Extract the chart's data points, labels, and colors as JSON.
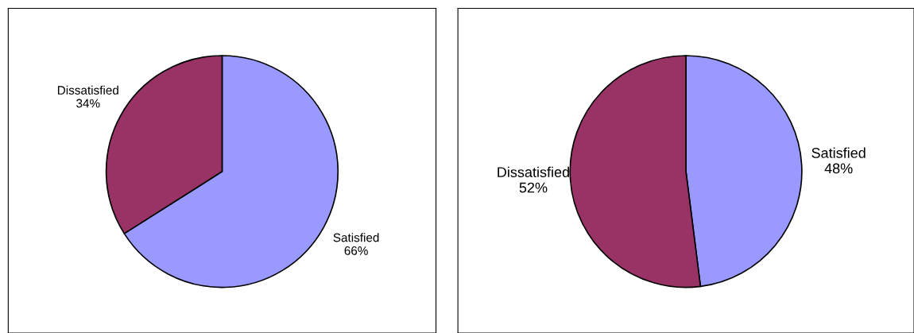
{
  "chart_data": [
    {
      "type": "pie",
      "categories": [
        "Satisfied",
        "Dissatisfied"
      ],
      "values": [
        66,
        34
      ],
      "colors": [
        "#9999ff",
        "#993366"
      ],
      "value_labels": [
        "66%",
        "34%"
      ]
    },
    {
      "type": "pie",
      "categories": [
        "Satisfied",
        "Dissatisfied"
      ],
      "values": [
        48,
        52
      ],
      "colors": [
        "#9999ff",
        "#993366"
      ],
      "value_labels": [
        "48%",
        "52%"
      ]
    }
  ]
}
